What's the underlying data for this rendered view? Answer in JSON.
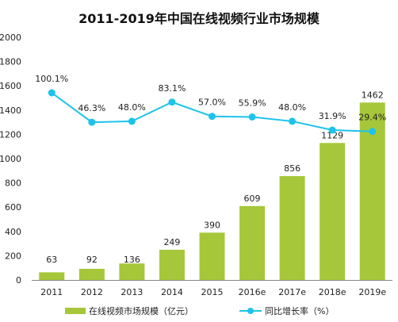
{
  "chart_data": {
    "type": "bar+line",
    "title": "2011-2019年中国在线视频行业市场规模",
    "categories": [
      "2011",
      "2012",
      "2013",
      "2014",
      "2015",
      "2016e",
      "2017e",
      "2018e",
      "2019e"
    ],
    "series": [
      {
        "name": "在线视频市场规模（亿元）",
        "type": "bar",
        "color": "#a6c73a",
        "values": [
          63,
          92,
          136,
          249,
          390,
          609,
          856,
          1129,
          1462
        ],
        "labels": [
          "63",
          "92",
          "136",
          "249",
          "390",
          "609",
          "856",
          "1129",
          "1462"
        ]
      },
      {
        "name": "同比增长率（%）",
        "type": "line",
        "color": "#1ec3ea",
        "values": [
          100.1,
          46.3,
          48.0,
          83.1,
          57.0,
          55.9,
          48.0,
          31.9,
          29.4
        ],
        "labels": [
          "100.1%",
          "46.3%",
          "48.0%",
          "83.1%",
          "57.0%",
          "55.9%",
          "48.0%",
          "31.9%",
          "29.4%"
        ]
      }
    ],
    "yticks": [
      "0",
      "200",
      "400",
      "600",
      "800",
      "1000",
      "1200",
      "1400",
      "1600",
      "1800",
      "2000"
    ],
    "ylim": [
      0,
      2000
    ],
    "legend_position": "bottom",
    "grid": false
  }
}
